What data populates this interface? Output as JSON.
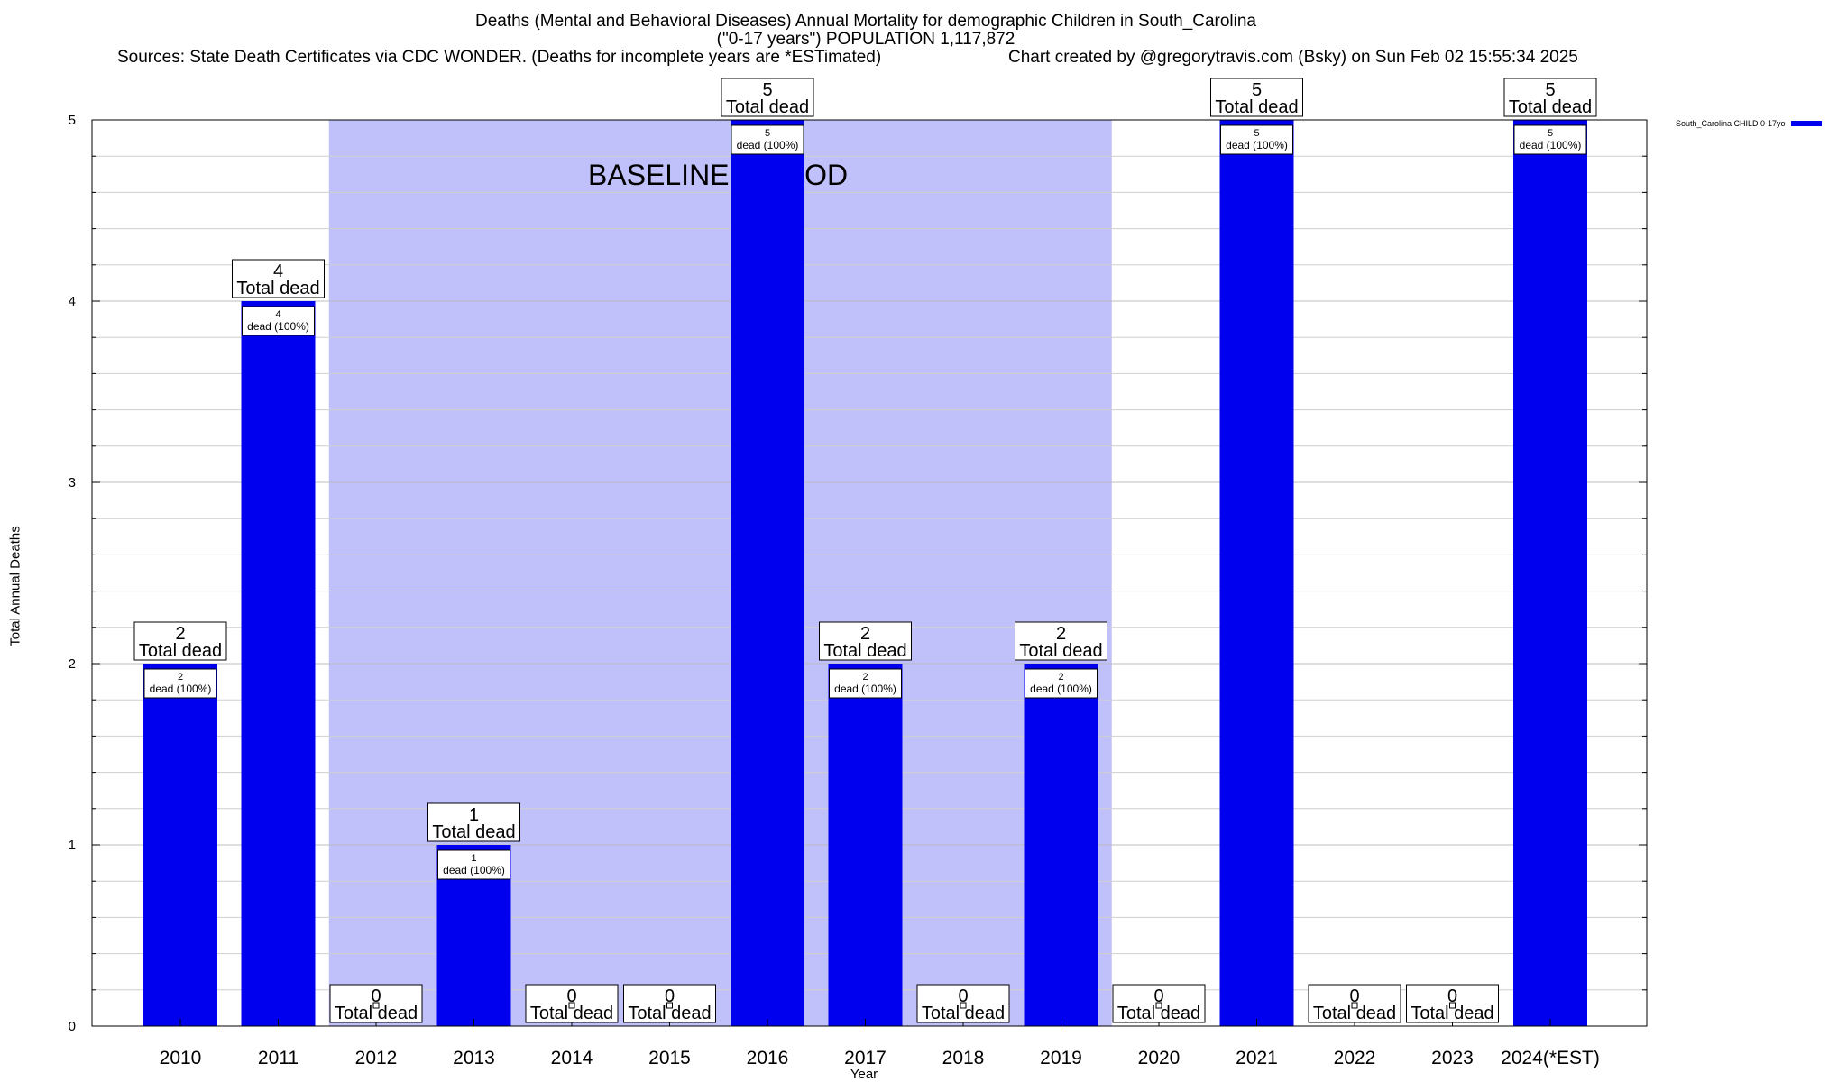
{
  "chart_data": {
    "type": "bar",
    "title": "Deaths (Mental and Behavioral Diseases) Annual Mortality for demographic Children in South_Carolina",
    "subtitle": "(\"0-17 years\") POPULATION 1,117,872",
    "sources": "Sources: State Death Certificates via CDC WONDER. (Deaths for incomplete years are *ESTimated)",
    "credit": "Chart created by @gregorytravis.com (Bsky) on Sun Feb 02 15:55:34 2025",
    "xlabel": "Year",
    "ylabel": "Total Annual Deaths",
    "ylim": [
      0,
      5
    ],
    "yticks": [
      "0",
      "1",
      "2",
      "3",
      "4",
      "5"
    ],
    "grid": true,
    "legend_placement": "top-right",
    "categories": [
      "2010",
      "2011",
      "2012",
      "2013",
      "2014",
      "2015",
      "2016",
      "2017",
      "2018",
      "2019",
      "2020",
      "2021",
      "2022",
      "2023",
      "2024(*EST)"
    ],
    "series": [
      {
        "name": "South_Carolina CHILD 0-17yo",
        "color": "#0000ee",
        "values": [
          2,
          4,
          0,
          1,
          0,
          0,
          5,
          2,
          0,
          2,
          0,
          5,
          0,
          0,
          5
        ]
      }
    ],
    "total_label_suffix": "Total dead",
    "inner_label_suffix": "dead (100%)",
    "baseline_period": {
      "label": "BASELINE PERIOD",
      "start": "2012",
      "end": "2019",
      "color": "#c0c0fa"
    }
  }
}
